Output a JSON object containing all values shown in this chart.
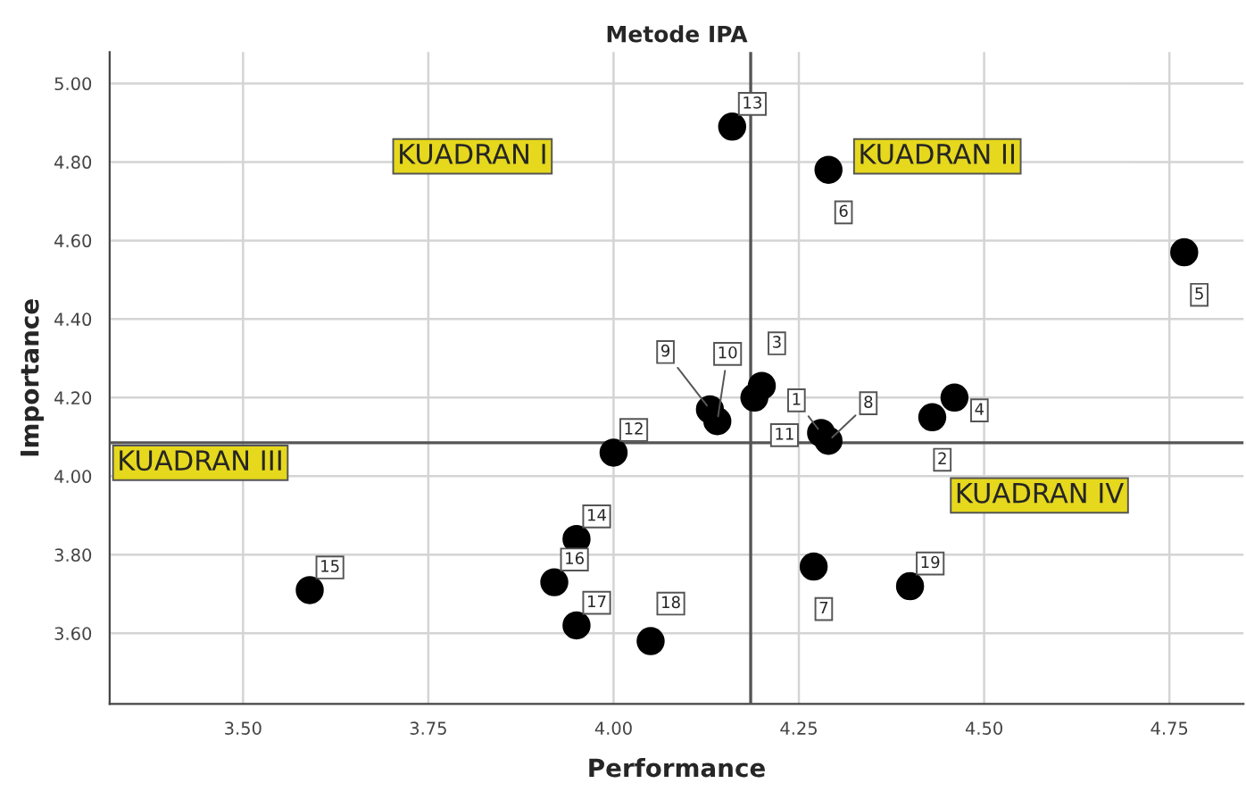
{
  "chart_data": {
    "type": "scatter",
    "title": "Metode IPA",
    "xlabel": "Performance",
    "ylabel": "Importance",
    "x": [
      4.28,
      4.43,
      4.2,
      4.46,
      4.77,
      4.29,
      4.27,
      4.29,
      4.13,
      4.14,
      4.19,
      4.0,
      4.16,
      3.95,
      3.59,
      3.92,
      3.95,
      4.05,
      4.4
    ],
    "values": [
      4.11,
      4.15,
      4.23,
      4.2,
      4.57,
      4.78,
      3.77,
      4.09,
      4.17,
      4.14,
      4.2,
      4.06,
      4.89,
      3.84,
      3.71,
      3.73,
      3.62,
      3.58,
      3.72
    ],
    "color": "#000000",
    "marker": "circle",
    "grid": true,
    "xlim": [
      3.32,
      4.85
    ],
    "ylim": [
      3.42,
      5.08
    ],
    "xticks": [
      {
        "value": 3.5,
        "label": "3.50"
      },
      {
        "value": 3.75,
        "label": "3.75"
      },
      {
        "value": 4.0,
        "label": "4.00"
      },
      {
        "value": 4.25,
        "label": "4.25"
      },
      {
        "value": 4.5,
        "label": "4.50"
      },
      {
        "value": 4.75,
        "label": "4.75"
      }
    ],
    "yticks": [
      {
        "value": 3.6,
        "label": "3.60"
      },
      {
        "value": 3.8,
        "label": "3.80"
      },
      {
        "value": 4.0,
        "label": "4.00"
      },
      {
        "value": 4.2,
        "label": "4.20"
      },
      {
        "value": 4.4,
        "label": "4.40"
      },
      {
        "value": 4.6,
        "label": "4.60"
      },
      {
        "value": 4.8,
        "label": "4.80"
      },
      {
        "value": 5.0,
        "label": "5.00"
      }
    ],
    "ref_lines": [
      {
        "axis": "x",
        "value": 4.185,
        "color": "#555555"
      },
      {
        "axis": "y",
        "value": 4.085,
        "color": "#555555"
      }
    ],
    "annotations": [
      {
        "text": "1",
        "x": 4.28,
        "y": 4.11
      },
      {
        "text": "2",
        "x": 4.43,
        "y": 4.15
      },
      {
        "text": "3",
        "x": 4.2,
        "y": 4.23
      },
      {
        "text": "4",
        "x": 4.46,
        "y": 4.2
      },
      {
        "text": "5",
        "x": 4.77,
        "y": 4.57
      },
      {
        "text": "6",
        "x": 4.29,
        "y": 4.78
      },
      {
        "text": "7",
        "x": 4.27,
        "y": 3.77
      },
      {
        "text": "8",
        "x": 4.29,
        "y": 4.09
      },
      {
        "text": "9",
        "x": 4.13,
        "y": 4.17
      },
      {
        "text": "10",
        "x": 4.14,
        "y": 4.14
      },
      {
        "text": "11",
        "x": 4.19,
        "y": 4.2
      },
      {
        "text": "12",
        "x": 4.0,
        "y": 4.06
      },
      {
        "text": "13",
        "x": 4.16,
        "y": 4.89
      },
      {
        "text": "14",
        "x": 3.95,
        "y": 3.84
      },
      {
        "text": "15",
        "x": 3.59,
        "y": 3.71
      },
      {
        "text": "16",
        "x": 3.92,
        "y": 3.73
      },
      {
        "text": "17",
        "x": 3.95,
        "y": 3.62
      },
      {
        "text": "18",
        "x": 4.05,
        "y": 3.58
      },
      {
        "text": "19",
        "x": 4.4,
        "y": 3.72
      },
      "KUADRAN I",
      "KUADRAN II",
      "KUADRAN III",
      "KUADRAN IV"
    ]
  }
}
